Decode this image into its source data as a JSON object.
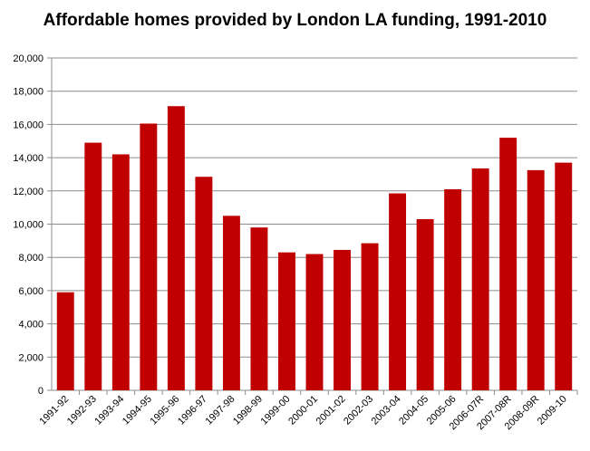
{
  "chart_data": {
    "type": "bar",
    "title": "Affordable homes provided by London LA funding, 1991-2010",
    "xlabel": "",
    "ylabel": "",
    "categories": [
      "1991-92",
      "1992-93",
      "1993-94",
      "1994-95",
      "1995-96",
      "1996-97",
      "1997-98",
      "1998-99",
      "1999-00",
      "2000-01",
      "2001-02",
      "2002-03",
      "2003-04",
      "2004-05",
      "2005-06",
      "2006-07R",
      "2007-08R",
      "2008-09R",
      "2009-10"
    ],
    "values": [
      5900,
      14900,
      14200,
      16050,
      17100,
      12850,
      10500,
      9800,
      8300,
      8200,
      8450,
      8850,
      11850,
      10300,
      12100,
      13350,
      15200,
      13250,
      13700
    ],
    "ylim": [
      0,
      20000
    ],
    "yticks": [
      "0",
      "2,000",
      "4,000",
      "6,000",
      "8,000",
      "10,000",
      "12,000",
      "14,000",
      "16,000",
      "18,000",
      "20,000"
    ],
    "bar_color": "#C00000",
    "grid": true,
    "legend": "none"
  }
}
